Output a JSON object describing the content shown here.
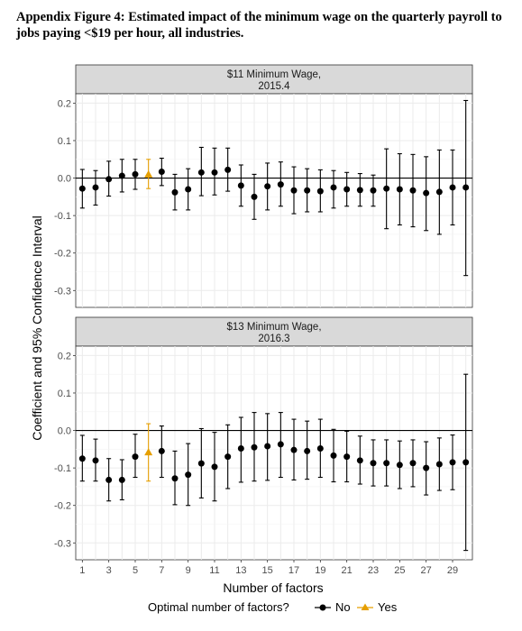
{
  "title": "Appendix Figure 4: Estimated impact of the minimum wage on the quarterly payroll to jobs paying <$19 per hour, all industries.",
  "colors": {
    "no": "#000000",
    "yes": "#E69F00",
    "strip_fill": "#d9d9d9",
    "grid": "#ebebeb"
  },
  "chart_data": {
    "type": "scatter",
    "chart_style": "faceted point estimates with 95% confidence interval error bars",
    "xlabel": "Number of factors",
    "ylabel": "Coefficient and 95% Confidence Interval",
    "x_tick_labels": [
      "1",
      "3",
      "5",
      "7",
      "9",
      "11",
      "13",
      "15",
      "17",
      "19",
      "21",
      "23",
      "25",
      "27",
      "29"
    ],
    "x_range": [
      0.5,
      30.5
    ],
    "legend": {
      "title": "Optimal number of factors?",
      "entries": [
        "No",
        "Yes"
      ],
      "position": "bottom"
    },
    "panels": [
      {
        "strip": [
          "$11 Minimum Wage,",
          "2015.4"
        ],
        "ylim": [
          -0.345,
          0.225
        ],
        "y_ticks": [
          0.2,
          0.1,
          0.0,
          -0.1,
          -0.2,
          -0.3
        ],
        "y_tick_labels": [
          "0.2",
          "0.1",
          "0.0",
          "-0.1",
          "-0.2",
          "-0.3"
        ],
        "points": [
          {
            "x": 1,
            "y": -0.028,
            "lo": -0.08,
            "hi": 0.023,
            "optimal": "No"
          },
          {
            "x": 2,
            "y": -0.025,
            "lo": -0.072,
            "hi": 0.02,
            "optimal": "No"
          },
          {
            "x": 3,
            "y": -0.003,
            "lo": -0.048,
            "hi": 0.045,
            "optimal": "No"
          },
          {
            "x": 4,
            "y": 0.006,
            "lo": -0.037,
            "hi": 0.05,
            "optimal": "No"
          },
          {
            "x": 5,
            "y": 0.01,
            "lo": -0.03,
            "hi": 0.05,
            "optimal": "No"
          },
          {
            "x": 6,
            "y": 0.01,
            "lo": -0.028,
            "hi": 0.05,
            "optimal": "Yes"
          },
          {
            "x": 7,
            "y": 0.017,
            "lo": -0.02,
            "hi": 0.053,
            "optimal": "No"
          },
          {
            "x": 8,
            "y": -0.038,
            "lo": -0.085,
            "hi": 0.01,
            "optimal": "No"
          },
          {
            "x": 9,
            "y": -0.03,
            "lo": -0.085,
            "hi": 0.025,
            "optimal": "No"
          },
          {
            "x": 10,
            "y": 0.015,
            "lo": -0.047,
            "hi": 0.082,
            "optimal": "No"
          },
          {
            "x": 11,
            "y": 0.015,
            "lo": -0.045,
            "hi": 0.08,
            "optimal": "No"
          },
          {
            "x": 12,
            "y": 0.022,
            "lo": -0.035,
            "hi": 0.08,
            "optimal": "No"
          },
          {
            "x": 13,
            "y": -0.02,
            "lo": -0.075,
            "hi": 0.035,
            "optimal": "No"
          },
          {
            "x": 14,
            "y": -0.05,
            "lo": -0.11,
            "hi": 0.01,
            "optimal": "No"
          },
          {
            "x": 15,
            "y": -0.022,
            "lo": -0.085,
            "hi": 0.04,
            "optimal": "No"
          },
          {
            "x": 16,
            "y": -0.017,
            "lo": -0.075,
            "hi": 0.043,
            "optimal": "No"
          },
          {
            "x": 17,
            "y": -0.033,
            "lo": -0.095,
            "hi": 0.03,
            "optimal": "No"
          },
          {
            "x": 18,
            "y": -0.033,
            "lo": -0.09,
            "hi": 0.025,
            "optimal": "No"
          },
          {
            "x": 19,
            "y": -0.035,
            "lo": -0.09,
            "hi": 0.022,
            "optimal": "No"
          },
          {
            "x": 20,
            "y": -0.025,
            "lo": -0.08,
            "hi": 0.02,
            "optimal": "No"
          },
          {
            "x": 21,
            "y": -0.03,
            "lo": -0.075,
            "hi": 0.015,
            "optimal": "No"
          },
          {
            "x": 22,
            "y": -0.032,
            "lo": -0.075,
            "hi": 0.012,
            "optimal": "No"
          },
          {
            "x": 23,
            "y": -0.033,
            "lo": -0.075,
            "hi": 0.008,
            "optimal": "No"
          },
          {
            "x": 24,
            "y": -0.028,
            "lo": -0.135,
            "hi": 0.078,
            "optimal": "No"
          },
          {
            "x": 25,
            "y": -0.03,
            "lo": -0.125,
            "hi": 0.065,
            "optimal": "No"
          },
          {
            "x": 26,
            "y": -0.033,
            "lo": -0.13,
            "hi": 0.063,
            "optimal": "No"
          },
          {
            "x": 27,
            "y": -0.04,
            "lo": -0.14,
            "hi": 0.057,
            "optimal": "No"
          },
          {
            "x": 28,
            "y": -0.037,
            "lo": -0.15,
            "hi": 0.075,
            "optimal": "No"
          },
          {
            "x": 29,
            "y": -0.025,
            "lo": -0.125,
            "hi": 0.075,
            "optimal": "No"
          },
          {
            "x": 30,
            "y": -0.025,
            "lo": -0.26,
            "hi": 0.207,
            "optimal": "No"
          }
        ]
      },
      {
        "strip": [
          "$13 Minimum Wage,",
          "2016.3"
        ],
        "ylim": [
          -0.345,
          0.225
        ],
        "y_ticks": [
          0.2,
          0.1,
          0.0,
          -0.1,
          -0.2,
          -0.3
        ],
        "y_tick_labels": [
          "0.2",
          "0.1",
          "0.0",
          "-0.1",
          "-0.2",
          "-0.3"
        ],
        "points": [
          {
            "x": 1,
            "y": -0.075,
            "lo": -0.135,
            "hi": -0.013,
            "optimal": "No"
          },
          {
            "x": 2,
            "y": -0.08,
            "lo": -0.135,
            "hi": -0.023,
            "optimal": "No"
          },
          {
            "x": 3,
            "y": -0.132,
            "lo": -0.188,
            "hi": -0.075,
            "optimal": "No"
          },
          {
            "x": 4,
            "y": -0.132,
            "lo": -0.185,
            "hi": -0.078,
            "optimal": "No"
          },
          {
            "x": 5,
            "y": -0.07,
            "lo": -0.125,
            "hi": -0.01,
            "optimal": "No"
          },
          {
            "x": 6,
            "y": -0.058,
            "lo": -0.135,
            "hi": 0.018,
            "optimal": "Yes"
          },
          {
            "x": 7,
            "y": -0.055,
            "lo": -0.125,
            "hi": 0.012,
            "optimal": "No"
          },
          {
            "x": 8,
            "y": -0.128,
            "lo": -0.198,
            "hi": -0.055,
            "optimal": "No"
          },
          {
            "x": 9,
            "y": -0.118,
            "lo": -0.2,
            "hi": -0.035,
            "optimal": "No"
          },
          {
            "x": 10,
            "y": -0.088,
            "lo": -0.18,
            "hi": 0.005,
            "optimal": "No"
          },
          {
            "x": 11,
            "y": -0.097,
            "lo": -0.188,
            "hi": -0.005,
            "optimal": "No"
          },
          {
            "x": 12,
            "y": -0.07,
            "lo": -0.155,
            "hi": 0.015,
            "optimal": "No"
          },
          {
            "x": 13,
            "y": -0.048,
            "lo": -0.138,
            "hi": 0.035,
            "optimal": "No"
          },
          {
            "x": 14,
            "y": -0.045,
            "lo": -0.135,
            "hi": 0.048,
            "optimal": "No"
          },
          {
            "x": 15,
            "y": -0.042,
            "lo": -0.133,
            "hi": 0.045,
            "optimal": "No"
          },
          {
            "x": 16,
            "y": -0.037,
            "lo": -0.125,
            "hi": 0.048,
            "optimal": "No"
          },
          {
            "x": 17,
            "y": -0.052,
            "lo": -0.132,
            "hi": 0.03,
            "optimal": "No"
          },
          {
            "x": 18,
            "y": -0.055,
            "lo": -0.13,
            "hi": 0.025,
            "optimal": "No"
          },
          {
            "x": 19,
            "y": -0.048,
            "lo": -0.125,
            "hi": 0.03,
            "optimal": "No"
          },
          {
            "x": 20,
            "y": -0.067,
            "lo": -0.137,
            "hi": 0.003,
            "optimal": "No"
          },
          {
            "x": 21,
            "y": -0.07,
            "lo": -0.137,
            "hi": -0.002,
            "optimal": "No"
          },
          {
            "x": 22,
            "y": -0.08,
            "lo": -0.143,
            "hi": -0.015,
            "optimal": "No"
          },
          {
            "x": 23,
            "y": -0.087,
            "lo": -0.148,
            "hi": -0.025,
            "optimal": "No"
          },
          {
            "x": 24,
            "y": -0.087,
            "lo": -0.148,
            "hi": -0.025,
            "optimal": "No"
          },
          {
            "x": 25,
            "y": -0.092,
            "lo": -0.155,
            "hi": -0.028,
            "optimal": "No"
          },
          {
            "x": 26,
            "y": -0.087,
            "lo": -0.15,
            "hi": -0.025,
            "optimal": "No"
          },
          {
            "x": 27,
            "y": -0.1,
            "lo": -0.172,
            "hi": -0.03,
            "optimal": "No"
          },
          {
            "x": 28,
            "y": -0.09,
            "lo": -0.16,
            "hi": -0.02,
            "optimal": "No"
          },
          {
            "x": 29,
            "y": -0.085,
            "lo": -0.158,
            "hi": -0.012,
            "optimal": "No"
          },
          {
            "x": 30,
            "y": -0.085,
            "lo": -0.32,
            "hi": 0.15,
            "optimal": "No"
          }
        ]
      }
    ]
  }
}
